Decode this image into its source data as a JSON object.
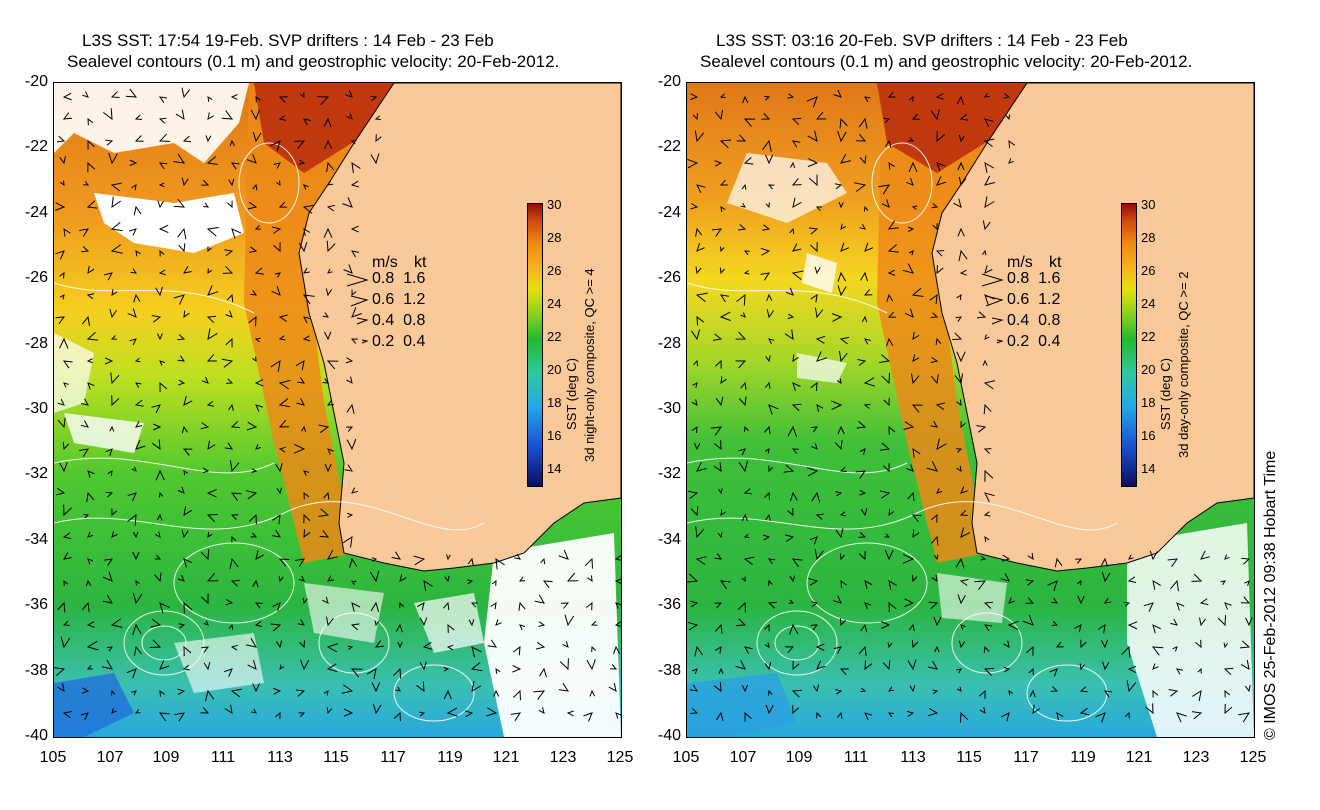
{
  "panels": [
    {
      "title_line1": "L3S SST: 17:54 19-Feb. SVP drifters : 14 Feb - 23 Feb",
      "title_line2": "Sealevel contours (0.1 m) and geostrophic velocity: 20-Feb-2012.",
      "colorbar_label": "SST (deg C)",
      "colorbar_sublabel": "3d night-only composite, QC >= 4"
    },
    {
      "title_line1": "L3S SST: 03:16 20-Feb. SVP drifters : 14 Feb - 23 Feb",
      "title_line2": "Sealevel contours (0.1 m) and geostrophic velocity: 20-Feb-2012.",
      "colorbar_label": "SST (deg C)",
      "colorbar_sublabel": "3d day-only composite, QC >= 2"
    }
  ],
  "axes": {
    "y_ticks": [
      "-20",
      "-22",
      "-24",
      "-26",
      "-28",
      "-30",
      "-32",
      "-34",
      "-36",
      "-38",
      "-40"
    ],
    "x_ticks": [
      "105",
      "107",
      "109",
      "111",
      "113",
      "115",
      "117",
      "119",
      "121",
      "123",
      "125"
    ]
  },
  "velocity_legend": {
    "header_ms": "m/s",
    "header_kt": "kt",
    "rows": [
      {
        "ms": "0.8",
        "kt": "1.6"
      },
      {
        "ms": "0.6",
        "kt": "1.2"
      },
      {
        "ms": "0.4",
        "kt": "0.8"
      },
      {
        "ms": "0.2",
        "kt": "0.4"
      }
    ]
  },
  "colorbar_ticks": [
    "30",
    "28",
    "26",
    "24",
    "22",
    "20",
    "18",
    "16",
    "14"
  ],
  "credit": "© IMOS 25-Feb-2012 09:38 Hobart Time",
  "colors": {
    "land": "#f9c99a",
    "no_data": "#ffffff",
    "contour": "#ffffff",
    "arrow": "#000000"
  }
}
